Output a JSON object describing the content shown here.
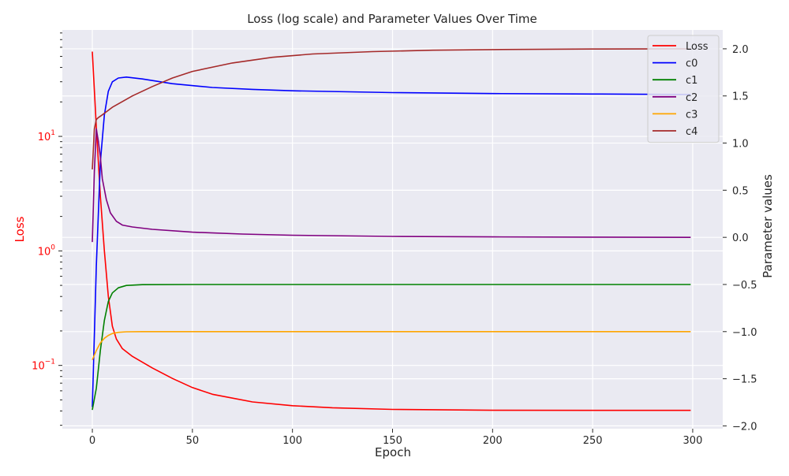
{
  "chart_data": {
    "type": "line",
    "title": "Loss (log scale) and Parameter Values Over Time",
    "xlabel": "Epoch",
    "ylabel_left": "Loss",
    "ylabel_right": "Parameter values",
    "xlim": [
      -15,
      315
    ],
    "left_axis": {
      "scale": "log",
      "ylim": [
        0.028,
        85
      ],
      "major_ticks": [
        0.1,
        1,
        10
      ],
      "tick_labels": [
        {
          "base": "10",
          "exp": "−1",
          "value": 0.1
        },
        {
          "base": "10",
          "exp": "0",
          "value": 1
        },
        {
          "base": "10",
          "exp": "1",
          "value": 10
        }
      ],
      "color": "#ff0000"
    },
    "right_axis": {
      "scale": "linear",
      "ylim": [
        -2.03,
        2.2
      ],
      "ticks": [
        -2.0,
        -1.5,
        -1.0,
        -0.5,
        0.0,
        0.5,
        1.0,
        1.5,
        2.0
      ],
      "tick_labels": [
        "−2.0",
        "−1.5",
        "−1.0",
        "−0.5",
        "0.0",
        "0.5",
        "1.0",
        "1.5",
        "2.0"
      ]
    },
    "x_ticks": [
      0,
      50,
      100,
      150,
      200,
      250,
      300
    ],
    "x_tick_labels": [
      "0",
      "50",
      "100",
      "150",
      "200",
      "250",
      "300"
    ],
    "grid": true,
    "legend_position": "top-right",
    "series": [
      {
        "name": "Loss",
        "axis": "left",
        "color": "#ff0000",
        "points": [
          [
            0,
            55
          ],
          [
            2,
            12
          ],
          [
            4,
            3
          ],
          [
            6,
            1.0
          ],
          [
            8,
            0.4
          ],
          [
            10,
            0.22
          ],
          [
            12,
            0.17
          ],
          [
            15,
            0.14
          ],
          [
            20,
            0.12
          ],
          [
            30,
            0.095
          ],
          [
            40,
            0.077
          ],
          [
            50,
            0.064
          ],
          [
            60,
            0.056
          ],
          [
            80,
            0.048
          ],
          [
            100,
            0.0445
          ],
          [
            120,
            0.0427
          ],
          [
            150,
            0.0413
          ],
          [
            200,
            0.0406
          ],
          [
            250,
            0.0405
          ],
          [
            299,
            0.0405
          ]
        ]
      },
      {
        "name": "c0",
        "axis": "right",
        "color": "#0000ff",
        "points": [
          [
            0,
            -1.8
          ],
          [
            2,
            -0.3
          ],
          [
            4,
            0.8
          ],
          [
            6,
            1.3
          ],
          [
            8,
            1.55
          ],
          [
            10,
            1.65
          ],
          [
            13,
            1.69
          ],
          [
            17,
            1.7
          ],
          [
            25,
            1.68
          ],
          [
            40,
            1.63
          ],
          [
            60,
            1.59
          ],
          [
            80,
            1.57
          ],
          [
            100,
            1.555
          ],
          [
            150,
            1.535
          ],
          [
            200,
            1.525
          ],
          [
            250,
            1.52
          ],
          [
            299,
            1.515
          ]
        ]
      },
      {
        "name": "c1",
        "axis": "right",
        "color": "#008000",
        "points": [
          [
            0,
            -1.83
          ],
          [
            2,
            -1.6
          ],
          [
            4,
            -1.2
          ],
          [
            6,
            -0.88
          ],
          [
            8,
            -0.68
          ],
          [
            10,
            -0.59
          ],
          [
            13,
            -0.535
          ],
          [
            17,
            -0.51
          ],
          [
            25,
            -0.502
          ],
          [
            50,
            -0.5
          ],
          [
            299,
            -0.5
          ]
        ]
      },
      {
        "name": "c2",
        "axis": "right",
        "color": "#800080",
        "points": [
          [
            0,
            -0.05
          ],
          [
            1,
            0.7
          ],
          [
            2,
            1.15
          ],
          [
            3,
            1.02
          ],
          [
            4,
            0.85
          ],
          [
            5,
            0.62
          ],
          [
            7,
            0.4
          ],
          [
            9,
            0.26
          ],
          [
            12,
            0.17
          ],
          [
            15,
            0.13
          ],
          [
            20,
            0.11
          ],
          [
            30,
            0.085
          ],
          [
            50,
            0.055
          ],
          [
            75,
            0.035
          ],
          [
            100,
            0.022
          ],
          [
            150,
            0.01
          ],
          [
            200,
            0.005
          ],
          [
            250,
            0.002
          ],
          [
            299,
            0.0
          ]
        ]
      },
      {
        "name": "c3",
        "axis": "right",
        "color": "#ffa500",
        "points": [
          [
            0,
            -1.3
          ],
          [
            2,
            -1.2
          ],
          [
            4,
            -1.12
          ],
          [
            6,
            -1.07
          ],
          [
            8,
            -1.04
          ],
          [
            10,
            -1.02
          ],
          [
            13,
            -1.008
          ],
          [
            17,
            -1.002
          ],
          [
            25,
            -1.0
          ],
          [
            299,
            -1.0
          ]
        ]
      },
      {
        "name": "c4",
        "axis": "right",
        "color": "#a52a2a",
        "points": [
          [
            0,
            0.72
          ],
          [
            1,
            1.15
          ],
          [
            2,
            1.25
          ],
          [
            3,
            1.27
          ],
          [
            5,
            1.3
          ],
          [
            10,
            1.38
          ],
          [
            20,
            1.5
          ],
          [
            30,
            1.6
          ],
          [
            40,
            1.69
          ],
          [
            50,
            1.76
          ],
          [
            70,
            1.85
          ],
          [
            90,
            1.91
          ],
          [
            110,
            1.945
          ],
          [
            140,
            1.97
          ],
          [
            170,
            1.985
          ],
          [
            200,
            1.992
          ],
          [
            250,
            1.998
          ],
          [
            299,
            2.0
          ]
        ]
      }
    ]
  }
}
